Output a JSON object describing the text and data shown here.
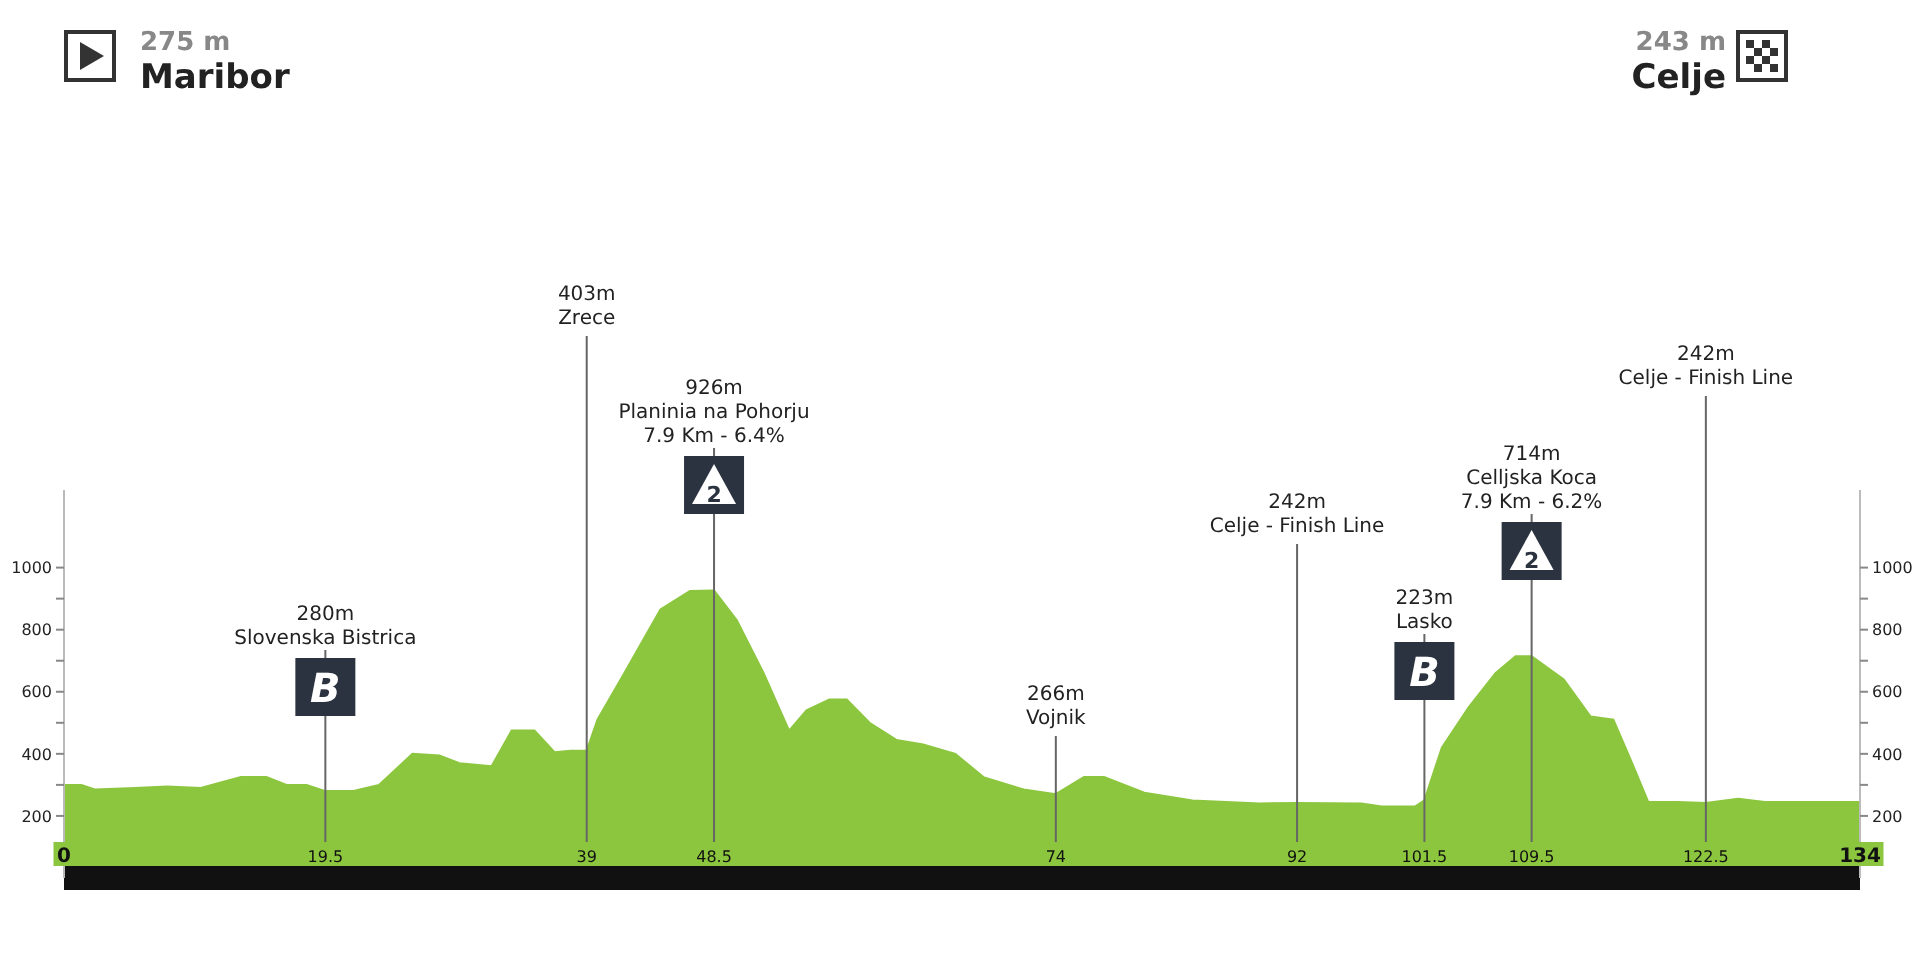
{
  "chart_data": {
    "type": "area",
    "x": [
      0,
      1.3,
      2.3,
      5.3,
      7.7,
      10.2,
      13.2,
      15.1,
      16.6,
      18.1,
      19.5,
      21.6,
      23.5,
      26,
      28,
      29.5,
      31.9,
      33.4,
      35.1,
      36.6,
      37.8,
      39,
      39.8,
      41.8,
      44.5,
      46.7,
      48.5,
      50.2,
      52.2,
      54.1,
      55.4,
      57.1,
      58.4,
      60.1,
      62.1,
      64.1,
      66.5,
      68.6,
      71.6,
      74,
      76.1,
      77.6,
      80.6,
      84.2,
      89.2,
      92,
      96.8,
      98.3,
      100.8,
      101.5,
      102.8,
      104.8,
      106.8,
      108.3,
      109.5,
      111.9,
      113.9,
      115.6,
      116.9,
      118.2,
      120.4,
      122.5,
      124.9,
      126.9,
      134
    ],
    "series": [
      {
        "color": "#8cc63f",
        "values": [
          300,
          300,
          285,
          290,
          295,
          290,
          325,
          325,
          300,
          300,
          280,
          280,
          300,
          400,
          395,
          370,
          360,
          475,
          475,
          405,
          410,
          410,
          510,
          660,
          865,
          925,
          926,
          830,
          660,
          475,
          540,
          575,
          575,
          500,
          445,
          430,
          400,
          325,
          285,
          270,
          325,
          325,
          275,
          250,
          240,
          242,
          240,
          230,
          230,
          250,
          420,
          550,
          660,
          714,
          714,
          640,
          520,
          510,
          380,
          245,
          245,
          242,
          255,
          245,
          245
        ]
      }
    ],
    "xlim": [
      0,
      134
    ],
    "xticks": [
      0,
      19.5,
      39,
      48.5,
      74,
      92,
      101.5,
      109.5,
      122.5,
      134
    ],
    "ylim": [
      0,
      1250
    ],
    "yticks": [
      {
        "value": 100,
        "label": null
      },
      200,
      {
        "value": 300,
        "label": null
      },
      400,
      {
        "value": 500,
        "label": null
      },
      600,
      {
        "value": 700,
        "label": null
      },
      800,
      {
        "value": 900,
        "label": null
      },
      1000
    ],
    "y2lim": [
      0,
      1250
    ],
    "y2ticks": [
      {
        "value": 100,
        "label": null
      },
      200,
      {
        "value": 300,
        "label": null
      },
      400,
      {
        "value": 500,
        "label": null
      },
      600,
      {
        "value": 700,
        "label": null
      },
      800,
      {
        "value": 900,
        "label": null
      },
      1000
    ],
    "ref_lines": [
      {
        "axis": "x",
        "value": 19.5,
        "label": "280m\nSlovenska Bistrica"
      },
      {
        "axis": "x",
        "value": 39,
        "label": "403m\nZrece"
      },
      {
        "axis": "x",
        "value": 48.5,
        "label": "926m\nPlaninia na Pohorju\n7.9 Km - 6.4%"
      },
      {
        "axis": "x",
        "value": 74,
        "label": "266m\nVojnik"
      },
      {
        "axis": "x",
        "value": 92,
        "label": "242m\nCelje - Finish Line"
      },
      {
        "axis": "x",
        "value": 101.5,
        "label": "223m\nLasko"
      },
      {
        "axis": "x",
        "value": 109.5,
        "label": "714m\nCelljska Koca\n7.9 Km - 6.2%"
      },
      {
        "axis": "x",
        "value": 122.5,
        "label": "242m\nCelje - Finish Line"
      }
    ],
    "annotations": [
      "275 m",
      "Maribor",
      "243 m",
      "Celje",
      "B",
      "2",
      "B",
      "2"
    ]
  }
}
